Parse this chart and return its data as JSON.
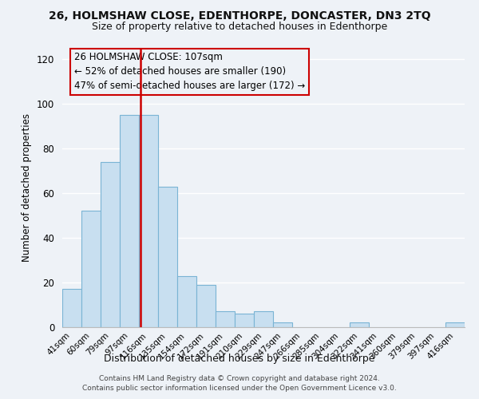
{
  "title": "26, HOLMSHAW CLOSE, EDENTHORPE, DONCASTER, DN3 2TQ",
  "subtitle": "Size of property relative to detached houses in Edenthorpe",
  "xlabel": "Distribution of detached houses by size in Edenthorpe",
  "ylabel": "Number of detached properties",
  "bar_labels": [
    "41sqm",
    "60sqm",
    "79sqm",
    "97sqm",
    "116sqm",
    "135sqm",
    "154sqm",
    "172sqm",
    "191sqm",
    "210sqm",
    "229sqm",
    "247sqm",
    "266sqm",
    "285sqm",
    "304sqm",
    "322sqm",
    "341sqm",
    "360sqm",
    "379sqm",
    "397sqm",
    "416sqm"
  ],
  "bar_values": [
    17,
    52,
    74,
    95,
    95,
    63,
    23,
    19,
    7,
    6,
    7,
    2,
    0,
    0,
    0,
    2,
    0,
    0,
    0,
    0,
    2
  ],
  "bar_color": "#c8dff0",
  "bar_edge_color": "#7ab4d4",
  "vline_color": "#cc0000",
  "vline_x": 3.58,
  "annotation_title": "26 HOLMSHAW CLOSE: 107sqm",
  "annotation_line1": "← 52% of detached houses are smaller (190)",
  "annotation_line2": "47% of semi-detached houses are larger (172) →",
  "annotation_box_edge": "#cc0000",
  "ylim": [
    0,
    125
  ],
  "yticks": [
    0,
    20,
    40,
    60,
    80,
    100,
    120
  ],
  "footnote1": "Contains HM Land Registry data © Crown copyright and database right 2024.",
  "footnote2": "Contains public sector information licensed under the Open Government Licence v3.0.",
  "bg_color": "#eef2f7"
}
